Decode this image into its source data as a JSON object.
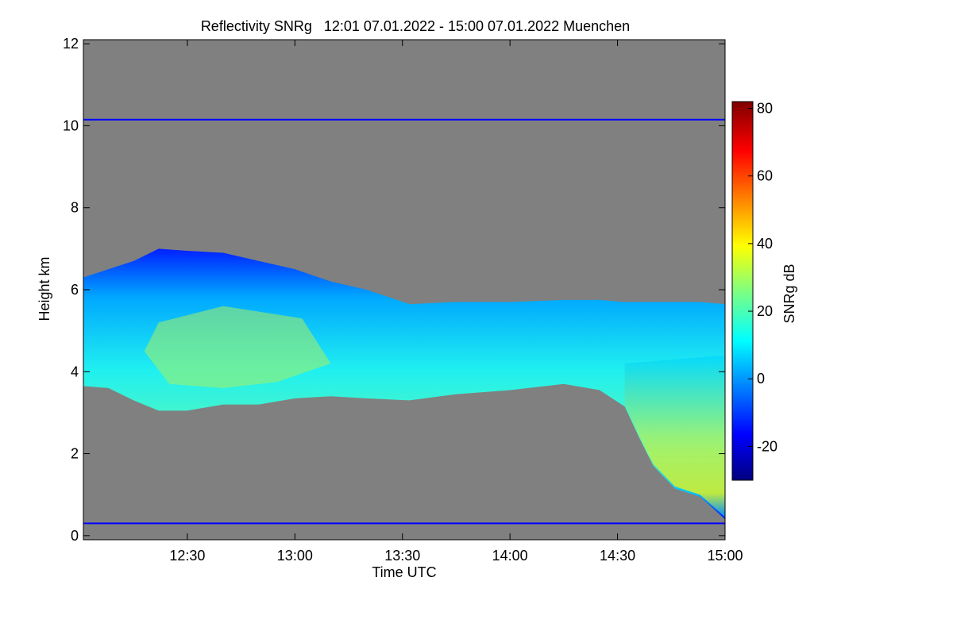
{
  "chart_data": {
    "type": "heatmap",
    "title": "Reflectivity SNRg   12:01 07.01.2022 - 15:00 07.01.2022 Muenchen",
    "xlabel": "Time UTC",
    "ylabel": "Height km",
    "x_range_minutes_utc": [
      721,
      900
    ],
    "y_range_km": [
      -0.1,
      12.1
    ],
    "x_ticks": [
      {
        "label": "12:30",
        "value": 750
      },
      {
        "label": "13:00",
        "value": 780
      },
      {
        "label": "13:30",
        "value": 810
      },
      {
        "label": "14:00",
        "value": 840
      },
      {
        "label": "14:30",
        "value": 870
      },
      {
        "label": "15:00",
        "value": 900
      }
    ],
    "y_ticks": [
      {
        "label": "0",
        "value": 0
      },
      {
        "label": "2",
        "value": 2
      },
      {
        "label": "4",
        "value": 4
      },
      {
        "label": "6",
        "value": 6
      },
      {
        "label": "8",
        "value": 8
      },
      {
        "label": "10",
        "value": 10
      },
      {
        "label": "12",
        "value": 12
      }
    ],
    "colorbar": {
      "label": "SNRg dB",
      "range": [
        -30,
        82
      ],
      "ticks": [
        {
          "label": "-20",
          "value": -20
        },
        {
          "label": "0",
          "value": 0
        },
        {
          "label": "20",
          "value": 20
        },
        {
          "label": "40",
          "value": 40
        },
        {
          "label": "60",
          "value": 60
        },
        {
          "label": "80",
          "value": 80
        }
      ]
    },
    "background_color": "#808080",
    "reference_lines_km": [
      10.15,
      0.3
    ],
    "reference_line_color": "#0000ff",
    "cloud_layer": {
      "description_bands": [
        {
          "t": 721,
          "base": 3.65,
          "top": 6.3
        },
        {
          "t": 728,
          "base": 3.6,
          "top": 6.5
        },
        {
          "t": 735,
          "base": 3.3,
          "top": 6.7
        },
        {
          "t": 742,
          "base": 3.05,
          "top": 7.0
        },
        {
          "t": 750,
          "base": 3.05,
          "top": 6.95
        },
        {
          "t": 760,
          "base": 3.2,
          "top": 6.9
        },
        {
          "t": 770,
          "base": 3.2,
          "top": 6.7
        },
        {
          "t": 780,
          "base": 3.35,
          "top": 6.5
        },
        {
          "t": 790,
          "base": 3.4,
          "top": 6.2
        },
        {
          "t": 800,
          "base": 3.35,
          "top": 6.0
        },
        {
          "t": 812,
          "base": 3.3,
          "top": 5.65
        },
        {
          "t": 825,
          "base": 3.45,
          "top": 5.7
        },
        {
          "t": 840,
          "base": 3.55,
          "top": 5.7
        },
        {
          "t": 855,
          "base": 3.7,
          "top": 5.75
        },
        {
          "t": 865,
          "base": 3.55,
          "top": 5.75
        },
        {
          "t": 872,
          "base": 3.15,
          "top": 5.7
        },
        {
          "t": 876,
          "base": 2.4,
          "top": 5.7
        },
        {
          "t": 880,
          "base": 1.7,
          "top": 5.7
        },
        {
          "t": 886,
          "base": 1.15,
          "top": 5.7
        },
        {
          "t": 893,
          "base": 0.95,
          "top": 5.7
        },
        {
          "t": 900,
          "base": 0.4,
          "top": 5.65
        }
      ],
      "peak_snr_db": 38
    }
  }
}
